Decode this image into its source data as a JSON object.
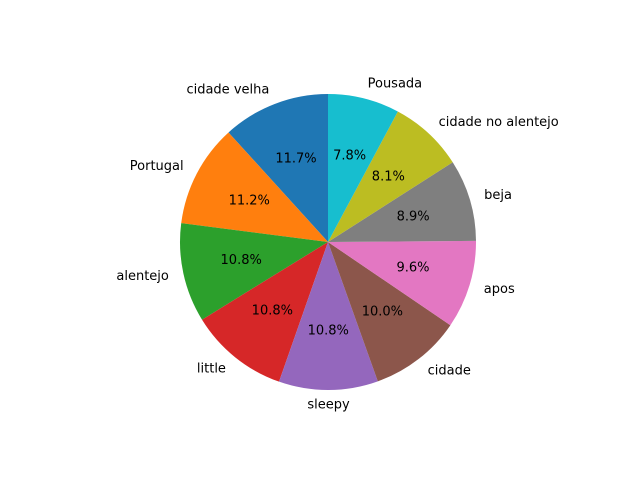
{
  "chart_data": {
    "type": "pie",
    "start_angle_deg": 90,
    "direction": "counterclockwise",
    "labels": [
      "cidade velha",
      "Portugal",
      "alentejo",
      "little",
      "sleepy",
      "cidade",
      "apos",
      "beja",
      "cidade no alentejo",
      "Pousada"
    ],
    "values": [
      11.7,
      11.2,
      10.8,
      10.8,
      10.8,
      10.0,
      9.6,
      8.9,
      8.1,
      7.8
    ],
    "percent_labels": [
      "11.7%",
      "11.2%",
      "10.8%",
      "10.8%",
      "10.8%",
      "10.0%",
      "9.6%",
      "8.9%",
      "8.1%",
      "7.8%"
    ],
    "colors": [
      "#1f77b4",
      "#ff7f0e",
      "#2ca02c",
      "#d62728",
      "#9467bd",
      "#8c564b",
      "#e377c2",
      "#7f7f7f",
      "#bcbd22",
      "#17becf"
    ]
  }
}
